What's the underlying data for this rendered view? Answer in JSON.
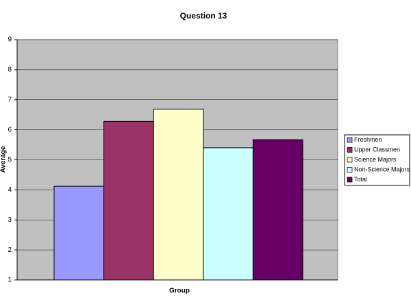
{
  "chart_data": {
    "type": "bar",
    "title": "Question 13",
    "x_label": "Group",
    "y_label": "Average",
    "series": [
      {
        "name": "Freshmen",
        "color": "#9999ff",
        "values": [
          4.12
        ]
      },
      {
        "name": "Upper Classmen",
        "color": "#993366",
        "values": [
          6.28
        ]
      },
      {
        "name": "Science Majors",
        "color": "#ffffcc",
        "values": [
          6.69
        ]
      },
      {
        "name": "Non-Science Majors",
        "color": "#ccffff",
        "values": [
          5.4
        ]
      },
      {
        "name": "Total",
        "color": "#660066",
        "values": [
          5.67
        ]
      }
    ],
    "ylim": [
      1,
      9
    ],
    "yticks": [
      1,
      2,
      3,
      4,
      5,
      6,
      7,
      8,
      9
    ],
    "grid": true,
    "legend": "right"
  }
}
